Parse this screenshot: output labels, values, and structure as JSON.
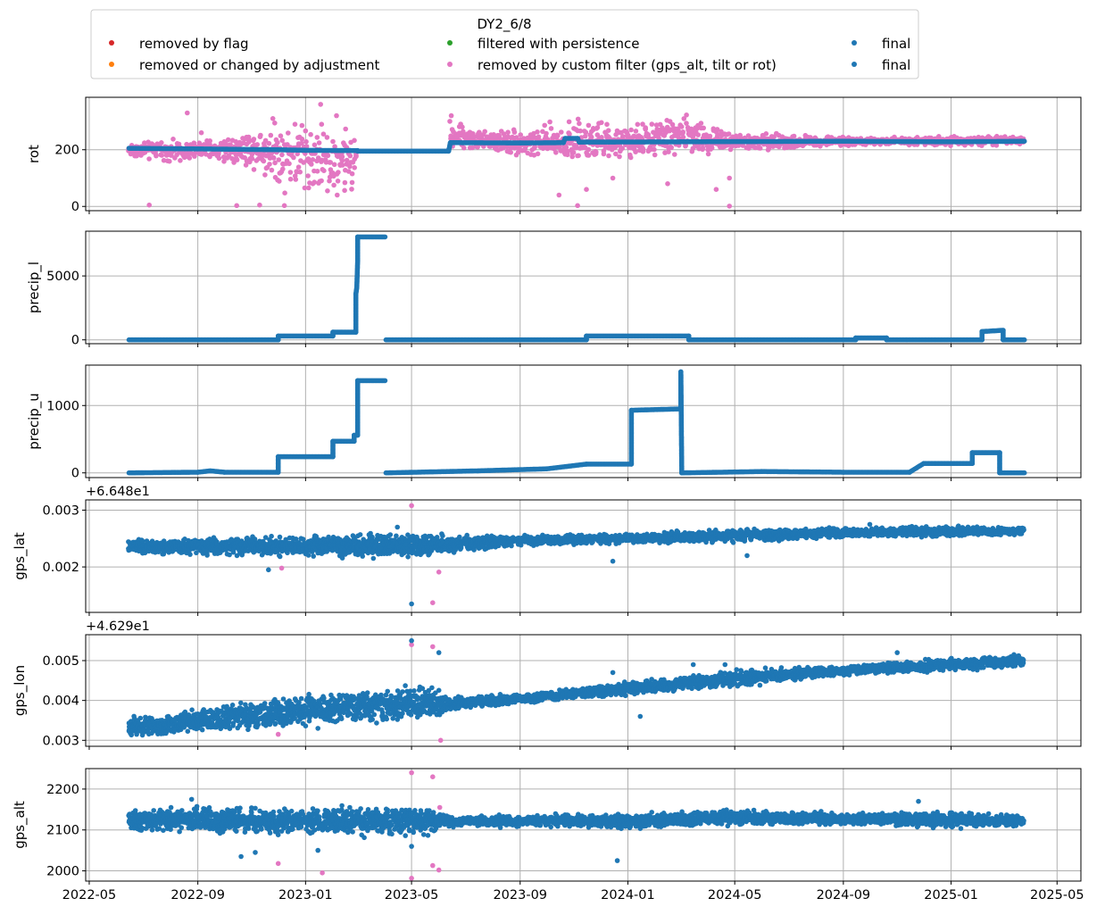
{
  "chart_data": {
    "type": "scatter",
    "legend": {
      "title": "DY2_6/8",
      "placement": "top-center",
      "entries": [
        {
          "label": "removed by flag",
          "color": "#d62728"
        },
        {
          "label": "removed or changed by adjustment",
          "color": "#ff7f0e"
        },
        {
          "label": "filtered with persistence",
          "color": "#2ca02c"
        },
        {
          "label": "removed by custom filter (gps_alt, tilt or rot)",
          "color": "#e377c2"
        },
        {
          "label": "final",
          "color": "#1f77b4"
        },
        {
          "label": "final",
          "color": "#1f77b4"
        }
      ]
    },
    "x_axis": {
      "ticks": [
        {
          "date": "2022-05-01",
          "label": "2022-05"
        },
        {
          "date": "2022-09-01",
          "label": "2022-09"
        },
        {
          "date": "2023-01-01",
          "label": "2023-01"
        },
        {
          "date": "2023-05-01",
          "label": "2023-05"
        },
        {
          "date": "2023-09-01",
          "label": "2023-09"
        },
        {
          "date": "2024-01-01",
          "label": "2024-01"
        },
        {
          "date": "2024-05-01",
          "label": "2024-05"
        },
        {
          "date": "2024-09-01",
          "label": "2024-09"
        },
        {
          "date": "2025-01-01",
          "label": "2025-01"
        },
        {
          "date": "2025-05-01",
          "label": "2025-05"
        }
      ],
      "range": [
        "2022-04-27",
        "2025-05-28"
      ],
      "grid": true
    },
    "panels": [
      {
        "ylabel": "rot",
        "offset_text": "",
        "ylim": [
          -15,
          385
        ],
        "yticks": [
          {
            "v": 0,
            "label": "0"
          },
          {
            "v": 200,
            "label": "200"
          }
        ],
        "final": [
          [
            "2022-06-15",
            205
          ],
          [
            "2022-09-01",
            203
          ],
          [
            "2022-12-01",
            200
          ],
          [
            "2023-01-01",
            198
          ],
          [
            "2023-03-01",
            197
          ],
          [
            "2023-03-01",
            195
          ],
          [
            "2023-06-12",
            195
          ],
          [
            "2023-06-14",
            225
          ],
          [
            "2023-09-01",
            224
          ],
          [
            "2023-10-20",
            225
          ],
          [
            "2023-10-22",
            240
          ],
          [
            "2023-11-05",
            240
          ],
          [
            "2023-11-07",
            227
          ],
          [
            "2024-03-01",
            228
          ],
          [
            "2024-09-01",
            230
          ],
          [
            "2025-01-01",
            228
          ],
          [
            "2025-03-25",
            230
          ]
        ],
        "custom_envelope": [
          [
            "2022-06-15",
            165,
            235
          ],
          [
            "2022-09-01",
            150,
            245
          ],
          [
            "2022-11-01",
            120,
            290
          ],
          [
            "2022-12-15",
            5,
            360
          ],
          [
            "2023-01-15",
            0,
            345
          ],
          [
            "2023-02-25",
            0,
            295
          ],
          [
            "2023-03-01",
            195,
            200
          ],
          [
            "2023-06-12",
            195,
            200
          ],
          [
            "2023-06-14",
            190,
            320
          ],
          [
            "2023-07-15",
            190,
            280
          ],
          [
            "2023-09-15",
            150,
            295
          ],
          [
            "2023-11-01",
            130,
            330
          ],
          [
            "2024-01-01",
            150,
            300
          ],
          [
            "2024-03-01",
            160,
            350
          ],
          [
            "2024-05-01",
            180,
            270
          ],
          [
            "2024-08-01",
            205,
            255
          ],
          [
            "2024-10-01",
            215,
            245
          ],
          [
            "2025-01-01",
            210,
            255
          ],
          [
            "2025-03-25",
            215,
            248
          ]
        ],
        "custom_outliers": [
          [
            "2022-07-08",
            5
          ],
          [
            "2022-08-20",
            330
          ],
          [
            "2022-09-05",
            260
          ],
          [
            "2022-09-25",
            170
          ],
          [
            "2022-10-15",
            3
          ],
          [
            "2022-11-10",
            5
          ],
          [
            "2022-11-25",
            310
          ],
          [
            "2022-12-08",
            3
          ],
          [
            "2022-12-20",
            290
          ],
          [
            "2023-01-18",
            360
          ],
          [
            "2023-02-05",
            320
          ],
          [
            "2023-06-15",
            320
          ],
          [
            "2023-10-15",
            40
          ],
          [
            "2023-11-05",
            3
          ],
          [
            "2023-11-15",
            60
          ],
          [
            "2023-12-15",
            100
          ],
          [
            "2024-02-15",
            80
          ],
          [
            "2024-04-10",
            60
          ],
          [
            "2024-04-25",
            1
          ],
          [
            "2024-04-25",
            100
          ]
        ]
      },
      {
        "ylabel": "precip_l",
        "offset_text": "",
        "ylim": [
          -300,
          8500
        ],
        "yticks": [
          {
            "v": 0,
            "label": "0"
          },
          {
            "v": 5000,
            "label": "5000"
          }
        ],
        "final": [
          [
            "2022-06-15",
            0
          ],
          [
            "2022-12-01",
            0
          ],
          [
            "2022-12-01",
            300
          ],
          [
            "2023-02-01",
            300
          ],
          [
            "2023-02-01",
            600
          ],
          [
            "2023-02-27",
            600
          ],
          [
            "2023-02-27",
            3600
          ],
          [
            "2023-02-28",
            4100
          ],
          [
            "2023-03-01",
            6200
          ],
          [
            "2023-03-01",
            8050
          ],
          [
            "2023-04-01",
            8050
          ]
        ],
        "final_2": [
          [
            "2023-04-02",
            0
          ],
          [
            "2023-11-15",
            0
          ],
          [
            "2023-11-15",
            300
          ],
          [
            "2024-03-10",
            300
          ],
          [
            "2024-03-10",
            0
          ],
          [
            "2024-09-15",
            0
          ],
          [
            "2024-09-15",
            150
          ],
          [
            "2024-10-20",
            150
          ],
          [
            "2024-10-20",
            0
          ],
          [
            "2025-02-05",
            0
          ],
          [
            "2025-02-05",
            650
          ],
          [
            "2025-03-01",
            750
          ],
          [
            "2025-03-01",
            0
          ],
          [
            "2025-03-25",
            0
          ]
        ]
      },
      {
        "ylabel": "precip_u",
        "offset_text": "",
        "ylim": [
          -70,
          1600
        ],
        "yticks": [
          {
            "v": 0,
            "label": "0"
          },
          {
            "v": 1000,
            "label": "1000"
          }
        ],
        "final": [
          [
            "2022-06-15",
            0
          ],
          [
            "2022-09-01",
            10
          ],
          [
            "2022-09-15",
            30
          ],
          [
            "2022-10-01",
            10
          ],
          [
            "2022-12-01",
            10
          ],
          [
            "2022-12-01",
            240
          ],
          [
            "2023-02-01",
            240
          ],
          [
            "2023-02-01",
            470
          ],
          [
            "2023-02-25",
            470
          ],
          [
            "2023-02-25",
            560
          ],
          [
            "2023-03-01",
            560
          ],
          [
            "2023-03-01",
            1370
          ],
          [
            "2023-04-01",
            1370
          ]
        ],
        "final_2": [
          [
            "2023-04-02",
            0
          ],
          [
            "2023-07-15",
            30
          ],
          [
            "2023-10-01",
            60
          ],
          [
            "2023-11-15",
            130
          ],
          [
            "2024-01-05",
            130
          ],
          [
            "2024-01-05",
            930
          ],
          [
            "2024-03-01",
            950
          ],
          [
            "2024-03-01",
            1500
          ],
          [
            "2024-03-02",
            0
          ],
          [
            "2024-06-01",
            20
          ],
          [
            "2024-09-01",
            10
          ],
          [
            "2024-11-15",
            10
          ],
          [
            "2024-12-01",
            140
          ],
          [
            "2025-01-25",
            140
          ],
          [
            "2025-01-25",
            300
          ],
          [
            "2025-02-25",
            300
          ],
          [
            "2025-02-25",
            0
          ],
          [
            "2025-03-25",
            0
          ]
        ]
      },
      {
        "ylabel": "gps_lat",
        "offset_text": "+6.648e1",
        "ylim": [
          0.0012,
          0.00318
        ],
        "yticks": [
          {
            "v": 0.002,
            "label": "0.002"
          },
          {
            "v": 0.003,
            "label": "0.003"
          }
        ],
        "final_band": [
          [
            "2022-06-15",
            0.0022,
            0.0025
          ],
          [
            "2023-05-01",
            0.0021,
            0.00265
          ],
          [
            "2023-06-15",
            0.0022,
            0.0026
          ],
          [
            "2023-09-01",
            0.00235,
            0.00258
          ],
          [
            "2024-01-01",
            0.0024,
            0.0026
          ],
          [
            "2024-05-01",
            0.0024,
            0.0027
          ],
          [
            "2024-09-01",
            0.0025,
            0.0027
          ],
          [
            "2025-01-01",
            0.0025,
            0.00275
          ],
          [
            "2025-03-25",
            0.00255,
            0.0027
          ]
        ],
        "final_outliers": [
          [
            "2022-11-20",
            0.00195
          ],
          [
            "2023-05-01",
            0.00135
          ],
          [
            "2023-12-15",
            0.0021
          ],
          [
            "2024-05-15",
            0.0022
          ],
          [
            "2023-04-15",
            0.0027
          ],
          [
            "2024-10-01",
            0.00275
          ]
        ],
        "custom_outliers": [
          [
            "2022-12-05",
            0.00198
          ],
          [
            "2023-05-01",
            0.00308
          ],
          [
            "2023-05-25",
            0.00137
          ],
          [
            "2023-06-01",
            0.00191
          ]
        ]
      },
      {
        "ylabel": "gps_lon",
        "offset_text": "+4.629e1",
        "ylim": [
          0.00285,
          0.00565
        ],
        "yticks": [
          {
            "v": 0.003,
            "label": "0.003"
          },
          {
            "v": 0.004,
            "label": "0.004"
          },
          {
            "v": 0.005,
            "label": "0.005"
          }
        ],
        "final_band": [
          [
            "2022-06-15",
            0.003,
            0.0036
          ],
          [
            "2022-09-01",
            0.0031,
            0.0039
          ],
          [
            "2023-01-01",
            0.0033,
            0.0042
          ],
          [
            "2023-05-15",
            0.0034,
            0.0045
          ],
          [
            "2023-06-15",
            0.0037,
            0.0041
          ],
          [
            "2023-09-01",
            0.0039,
            0.0042
          ],
          [
            "2024-01-01",
            0.0041,
            0.0045
          ],
          [
            "2024-05-01",
            0.0043,
            0.0048
          ],
          [
            "2024-09-01",
            0.0046,
            0.0049
          ],
          [
            "2025-01-01",
            0.0047,
            0.0051
          ],
          [
            "2025-03-25",
            0.0048,
            0.0052
          ]
        ],
        "final_outliers": [
          [
            "2023-05-01",
            0.0055
          ],
          [
            "2023-06-01",
            0.0052
          ],
          [
            "2024-01-15",
            0.0036
          ],
          [
            "2023-01-15",
            0.0033
          ],
          [
            "2024-03-15",
            0.0049
          ],
          [
            "2024-04-20",
            0.0049
          ],
          [
            "2024-11-01",
            0.0052
          ],
          [
            "2023-12-15",
            0.0047
          ]
        ],
        "custom_outliers": [
          [
            "2022-12-01",
            0.00315
          ],
          [
            "2023-05-01",
            0.0054
          ],
          [
            "2023-05-25",
            0.00535
          ],
          [
            "2023-06-03",
            0.003
          ]
        ]
      },
      {
        "ylabel": "gps_alt",
        "offset_text": "",
        "ylim": [
          1975,
          2250
        ],
        "yticks": [
          {
            "v": 2000,
            "label": "2000"
          },
          {
            "v": 2100,
            "label": "2100"
          },
          {
            "v": 2200,
            "label": "2200"
          }
        ],
        "final_band": [
          [
            "2022-06-15",
            2090,
            2160
          ],
          [
            "2023-01-01",
            2080,
            2165
          ],
          [
            "2023-05-15",
            2075,
            2165
          ],
          [
            "2023-06-15",
            2105,
            2135
          ],
          [
            "2023-09-01",
            2105,
            2140
          ],
          [
            "2024-01-01",
            2100,
            2145
          ],
          [
            "2024-05-01",
            2105,
            2155
          ],
          [
            "2024-09-01",
            2110,
            2145
          ],
          [
            "2025-01-01",
            2100,
            2150
          ],
          [
            "2025-03-25",
            2105,
            2140
          ]
        ],
        "final_outliers": [
          [
            "2022-10-20",
            2035
          ],
          [
            "2022-11-05",
            2045
          ],
          [
            "2023-01-15",
            2050
          ],
          [
            "2023-05-01",
            2060
          ],
          [
            "2023-12-20",
            2025
          ],
          [
            "2022-08-25",
            2175
          ],
          [
            "2024-11-25",
            2170
          ]
        ],
        "custom_outliers": [
          [
            "2022-12-01",
            2018
          ],
          [
            "2023-01-20",
            1995
          ],
          [
            "2023-05-01",
            2240
          ],
          [
            "2023-05-01",
            1982
          ],
          [
            "2023-05-25",
            2230
          ],
          [
            "2023-05-25",
            2013
          ],
          [
            "2023-06-01",
            2002
          ],
          [
            "2023-06-02",
            2155
          ]
        ]
      }
    ]
  }
}
